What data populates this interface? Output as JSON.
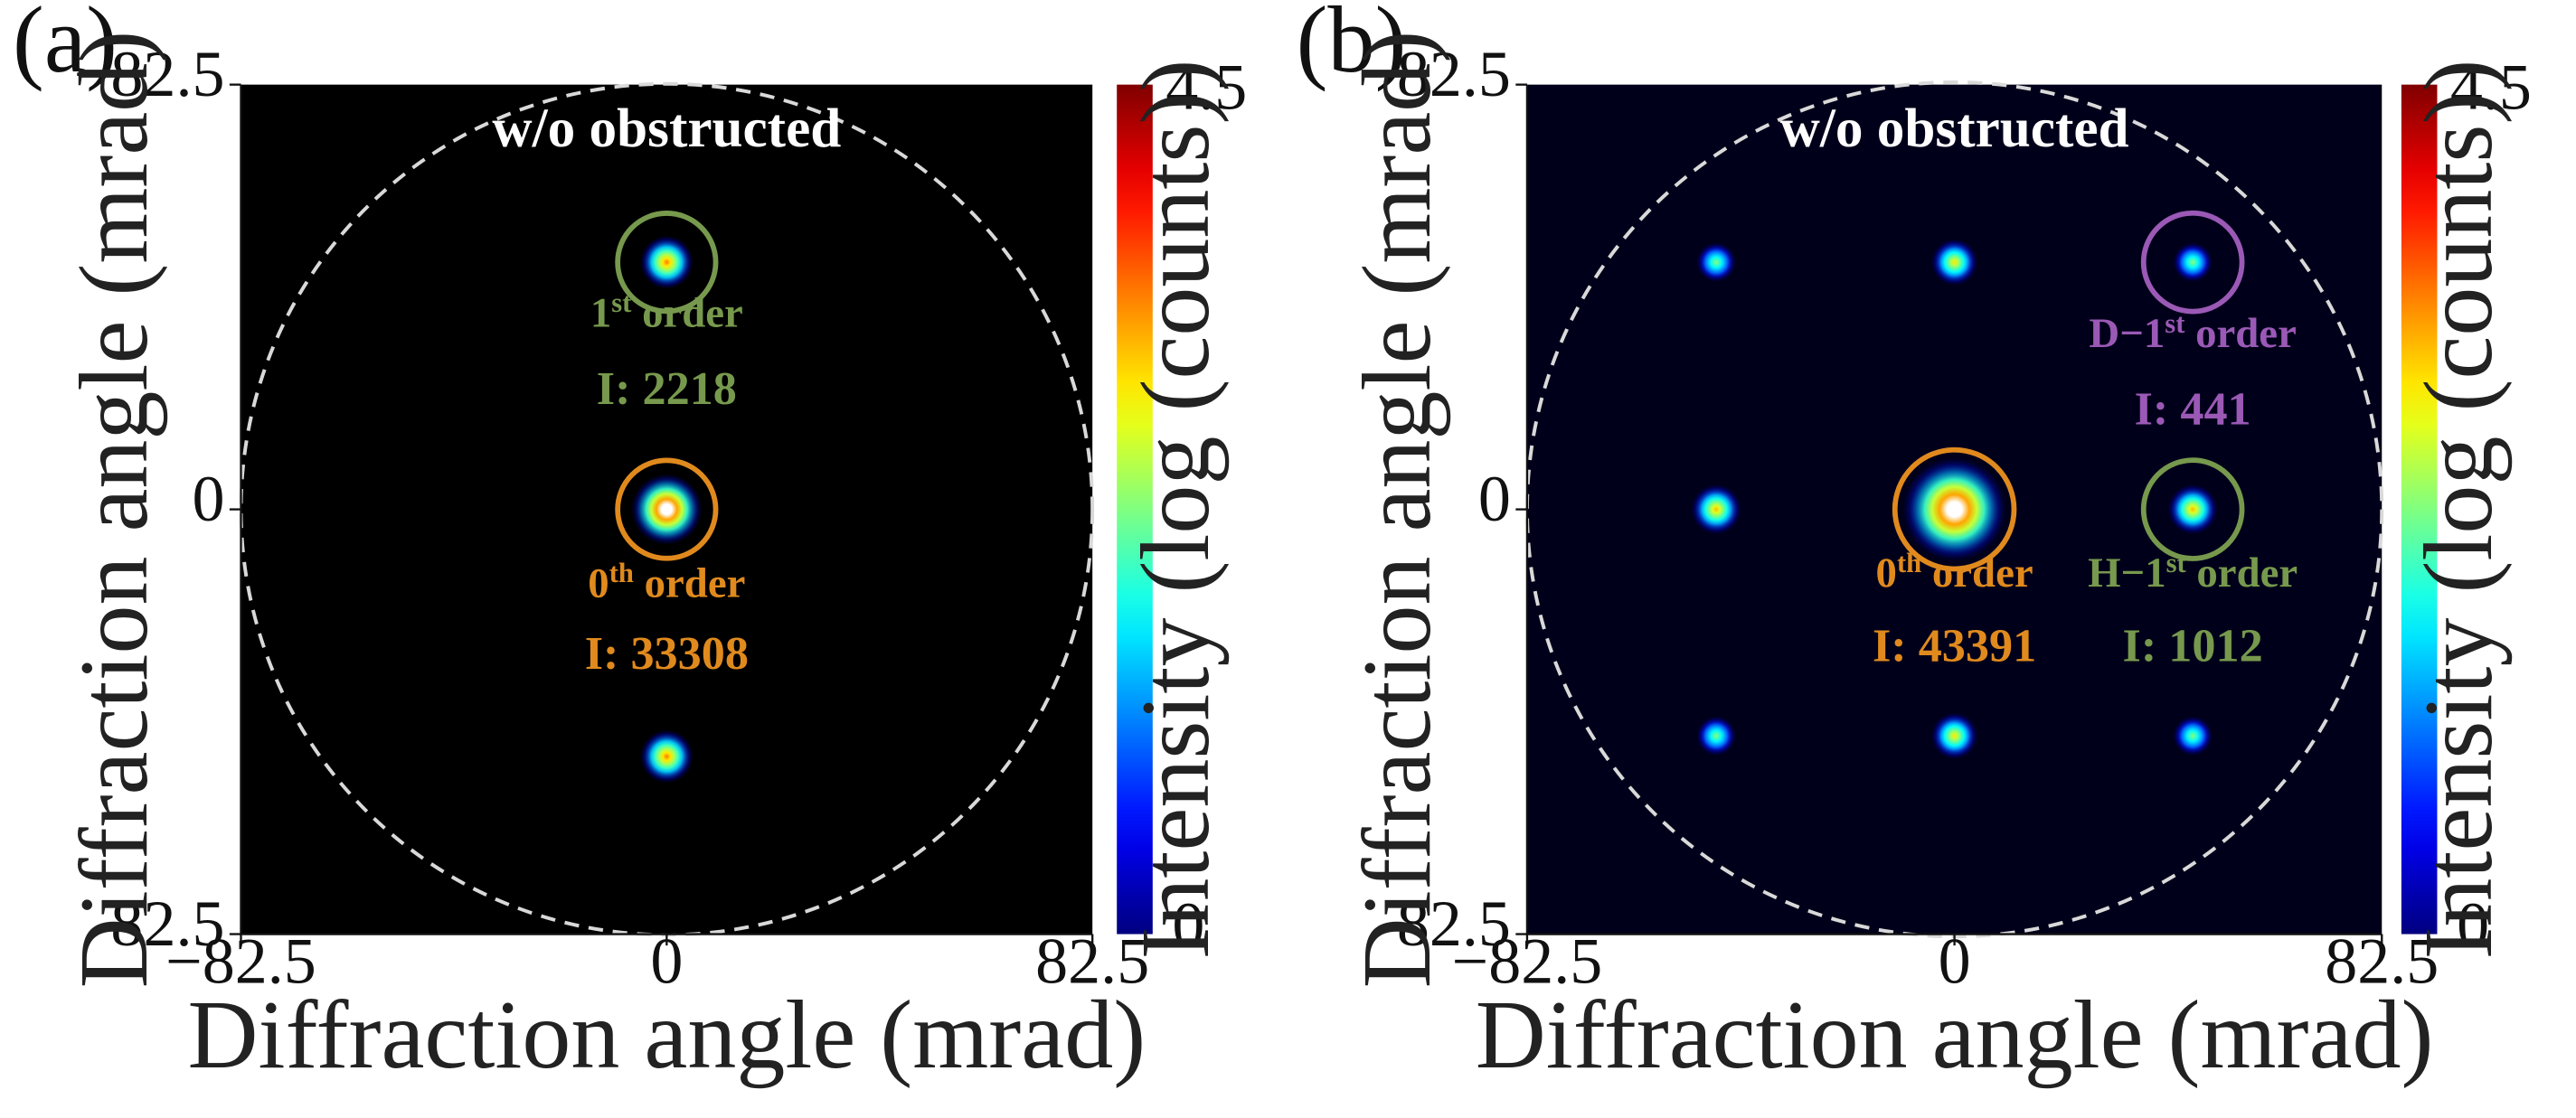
{
  "figure": {
    "type": "diffraction-pattern",
    "panels": 2
  },
  "chart_data": [
    {
      "type": "heatmap",
      "panel_label": "(a)",
      "title": "w/o obstructed",
      "xlabel": "Diffraction angle (mrad)",
      "ylabel": "Diffraction angle (mrad)",
      "xlim": [
        -82.5,
        82.5
      ],
      "ylim": [
        -82.5,
        82.5
      ],
      "x_ticks": [
        "−82.5",
        "0",
        "82.5"
      ],
      "y_ticks": [
        "−82.5",
        "0",
        "82.5"
      ],
      "colorbar": {
        "label": "Intensity (log (counts))",
        "min": 0,
        "max": 4.5,
        "min_label": "0",
        "max_label": "4.5",
        "colormap": "jet"
      },
      "boundary_circle_radius": 82.5,
      "spots": [
        {
          "x": 0,
          "y": 0,
          "log_intensity": 4.5,
          "size": 1.0
        },
        {
          "x": 0,
          "y": -48,
          "log_intensity": 3.4,
          "size": 0.75
        },
        {
          "x": 0,
          "y": 48,
          "log_intensity": 3.4,
          "size": 0.75
        }
      ],
      "annotations": [
        {
          "name": "first-order",
          "cx": 0,
          "cy": -48,
          "r": 9.5,
          "color": "#77994d",
          "label_main": "1",
          "label_sup": "st",
          "label_rest": " order",
          "label_x": 0,
          "label_y": -35.5,
          "intensity_text": "I: 2218",
          "intensity_y": -20.5
        },
        {
          "name": "zeroth-order",
          "cx": 0,
          "cy": 0,
          "r": 9.5,
          "color": "#e08a1e",
          "label_main": "0",
          "label_sup": "th",
          "label_rest": " order",
          "label_x": 0,
          "label_y": 17,
          "intensity_text": "I: 33308",
          "intensity_y": 31
        }
      ]
    },
    {
      "type": "heatmap",
      "panel_label": "(b)",
      "title": "w/o obstructed",
      "xlabel": "Diffraction angle (mrad)",
      "ylabel": "Diffraction angle (mrad)",
      "xlim": [
        -82.5,
        82.5
      ],
      "ylim": [
        -82.5,
        82.5
      ],
      "x_ticks": [
        "−82.5",
        "0",
        "82.5"
      ],
      "y_ticks": [
        "−82.5",
        "0",
        "82.5"
      ],
      "colorbar": {
        "label": "Intensity (log (counts))",
        "min": 0,
        "max": 4.5,
        "min_label": "0",
        "max_label": "4.5",
        "colormap": "jet"
      },
      "boundary_circle_radius": 82.5,
      "spots": [
        {
          "x": 0,
          "y": 0,
          "log_intensity": 4.5,
          "size": 1.45
        },
        {
          "x": 46,
          "y": 0,
          "log_intensity": 3.1,
          "size": 0.7
        },
        {
          "x": -46,
          "y": 0,
          "log_intensity": 3.1,
          "size": 0.7
        },
        {
          "x": 0,
          "y": -48,
          "log_intensity": 2.9,
          "size": 0.65
        },
        {
          "x": 0,
          "y": 44,
          "log_intensity": 2.9,
          "size": 0.65
        },
        {
          "x": 46,
          "y": -48,
          "log_intensity": 2.3,
          "size": 0.55
        },
        {
          "x": -46,
          "y": -48,
          "log_intensity": 2.3,
          "size": 0.55
        },
        {
          "x": 46,
          "y": 44,
          "log_intensity": 2.3,
          "size": 0.55
        },
        {
          "x": -46,
          "y": 44,
          "log_intensity": 2.3,
          "size": 0.55
        }
      ],
      "annotations": [
        {
          "name": "diagonal-first-order",
          "cx": 46,
          "cy": -48,
          "r": 9.5,
          "color": "#9b59b6",
          "label_main": "D−1",
          "label_sup": "st",
          "label_rest": " order",
          "label_x": 46,
          "label_y": -31.5,
          "intensity_text": "I: 441",
          "intensity_y": -16.5
        },
        {
          "name": "horizontal-first-order",
          "cx": 46,
          "cy": 0,
          "r": 9.5,
          "color": "#77994d",
          "label_main": "H−1",
          "label_sup": "st",
          "label_rest": " order",
          "label_x": 46,
          "label_y": 15,
          "intensity_text": "I: 1012",
          "intensity_y": 29.5
        },
        {
          "name": "zeroth-order",
          "cx": 0,
          "cy": 0,
          "r": 11.5,
          "color": "#e08a1e",
          "label_main": "0",
          "label_sup": "th",
          "label_rest": " order",
          "label_x": 0,
          "label_y": 15,
          "intensity_text": "I: 43391",
          "intensity_y": 29.5
        }
      ]
    }
  ]
}
